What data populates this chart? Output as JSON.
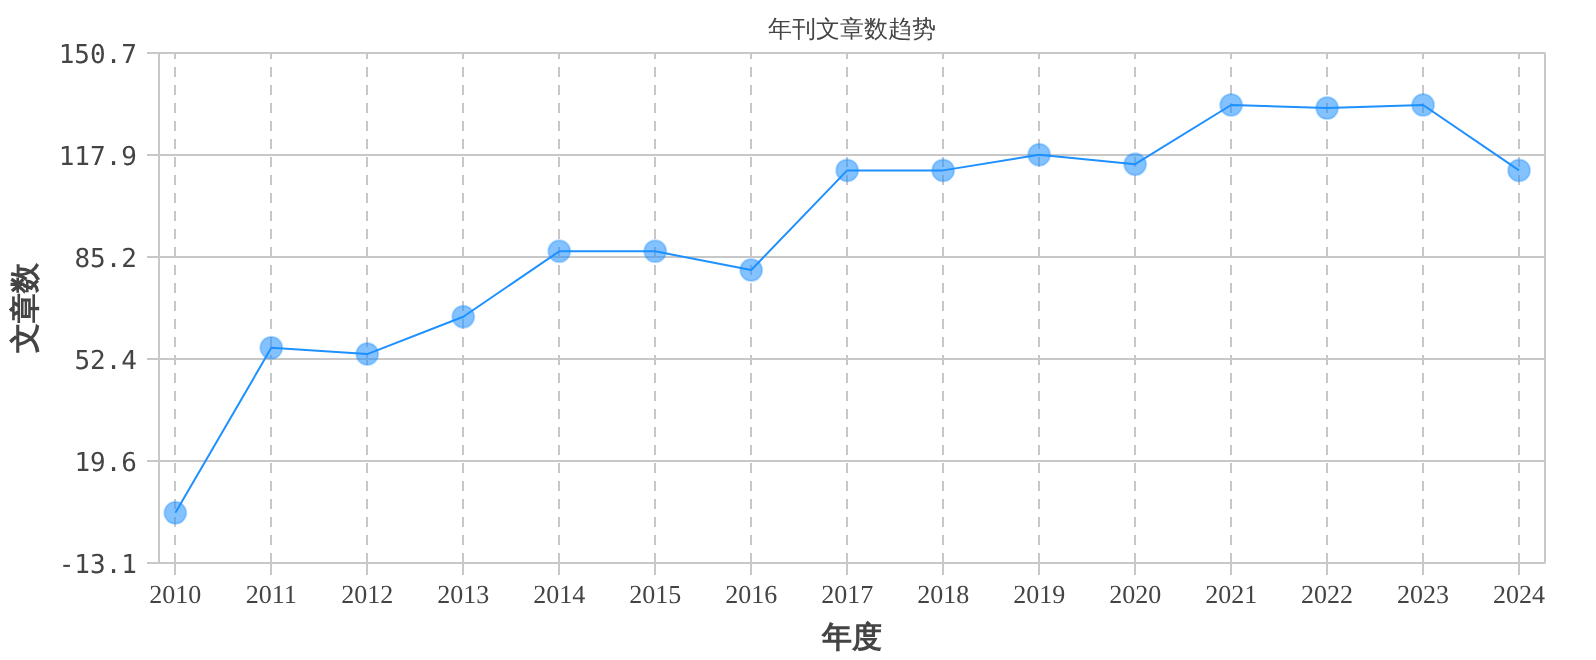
{
  "chart_data": {
    "type": "line",
    "title": "年刊文章数趋势",
    "xlabel": "年度",
    "ylabel": "文章数",
    "x": [
      2010,
      2011,
      2012,
      2013,
      2014,
      2015,
      2016,
      2017,
      2018,
      2019,
      2020,
      2021,
      2022,
      2023,
      2024
    ],
    "series": [
      {
        "color": "#1e90ff",
        "values": [
          3,
          56,
          54,
          66,
          87,
          87,
          81,
          113,
          113,
          118,
          115,
          134,
          133,
          134,
          113
        ]
      }
    ],
    "xlim": [
      2009.83,
      2024.27
    ],
    "xticks": [
      2010,
      2011,
      2012,
      2013,
      2014,
      2015,
      2016,
      2017,
      2018,
      2019,
      2020,
      2021,
      2022,
      2023,
      2024
    ],
    "ylim": [
      -13.1,
      150.7
    ],
    "yticks": [
      -13.1,
      19.6,
      52.4,
      85.2,
      117.9,
      150.7
    ],
    "grid": true,
    "marker": "circle",
    "line_style": "solid"
  }
}
